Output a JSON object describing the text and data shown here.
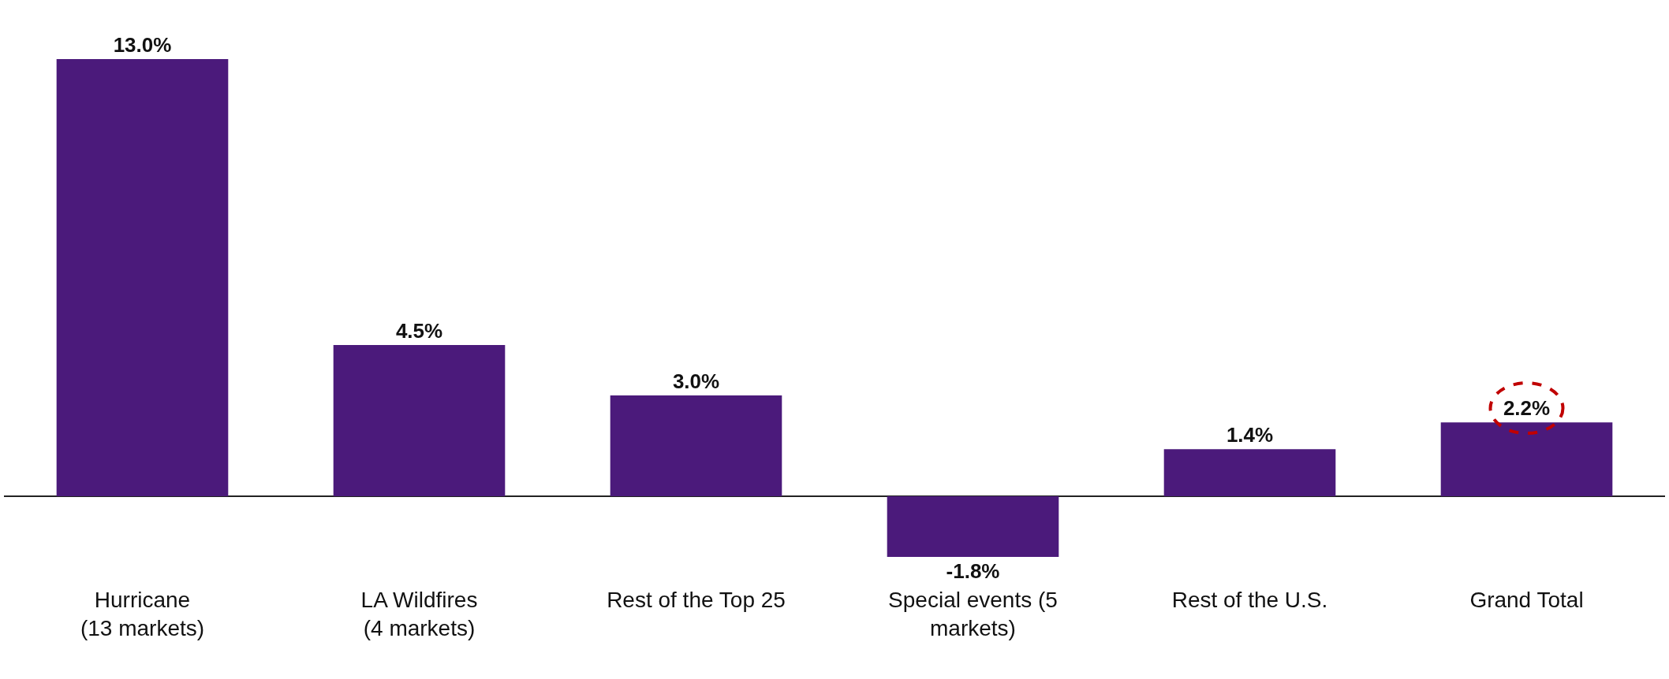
{
  "chart_data": {
    "type": "bar",
    "categories": [
      "Hurricane\n(13 markets)",
      "LA Wildfires\n(4 markets)",
      "Rest of the Top 25",
      "Special events (5\nmarkets)",
      "Rest of the U.S.",
      "Grand Total"
    ],
    "values": [
      13.0,
      4.5,
      3.0,
      -1.8,
      1.4,
      2.2
    ],
    "value_labels": [
      "13.0%",
      "4.5%",
      "3.0%",
      "-1.8%",
      "1.4%",
      "2.2%"
    ],
    "color": "#4b1a7b"
  }
}
